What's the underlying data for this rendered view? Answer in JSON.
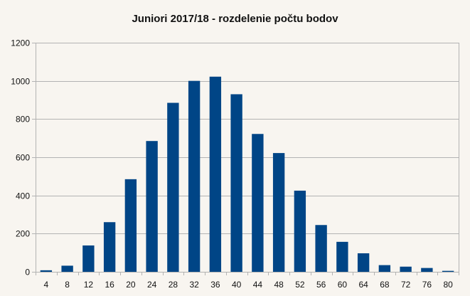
{
  "chart_data": {
    "type": "bar",
    "title": "Juniori 2017/18 - rozdelenie počtu bodov",
    "xlabel": "",
    "ylabel": "",
    "categories": [
      "4",
      "8",
      "12",
      "16",
      "20",
      "24",
      "28",
      "32",
      "36",
      "40",
      "44",
      "48",
      "52",
      "56",
      "60",
      "64",
      "68",
      "72",
      "76",
      "80"
    ],
    "values": [
      8,
      32,
      138,
      260,
      485,
      685,
      885,
      1000,
      1022,
      930,
      722,
      622,
      425,
      245,
      157,
      97,
      35,
      27,
      20,
      5
    ],
    "ylim": [
      0,
      1200
    ],
    "yticks": [
      0,
      200,
      400,
      600,
      800,
      1000,
      1200
    ],
    "grid": "horizontal",
    "legend": "none",
    "colors": {
      "bar": "#004586",
      "grid": "#b3b3b3",
      "axis": "#b3b3b3",
      "background": "#f8f5f0"
    }
  }
}
